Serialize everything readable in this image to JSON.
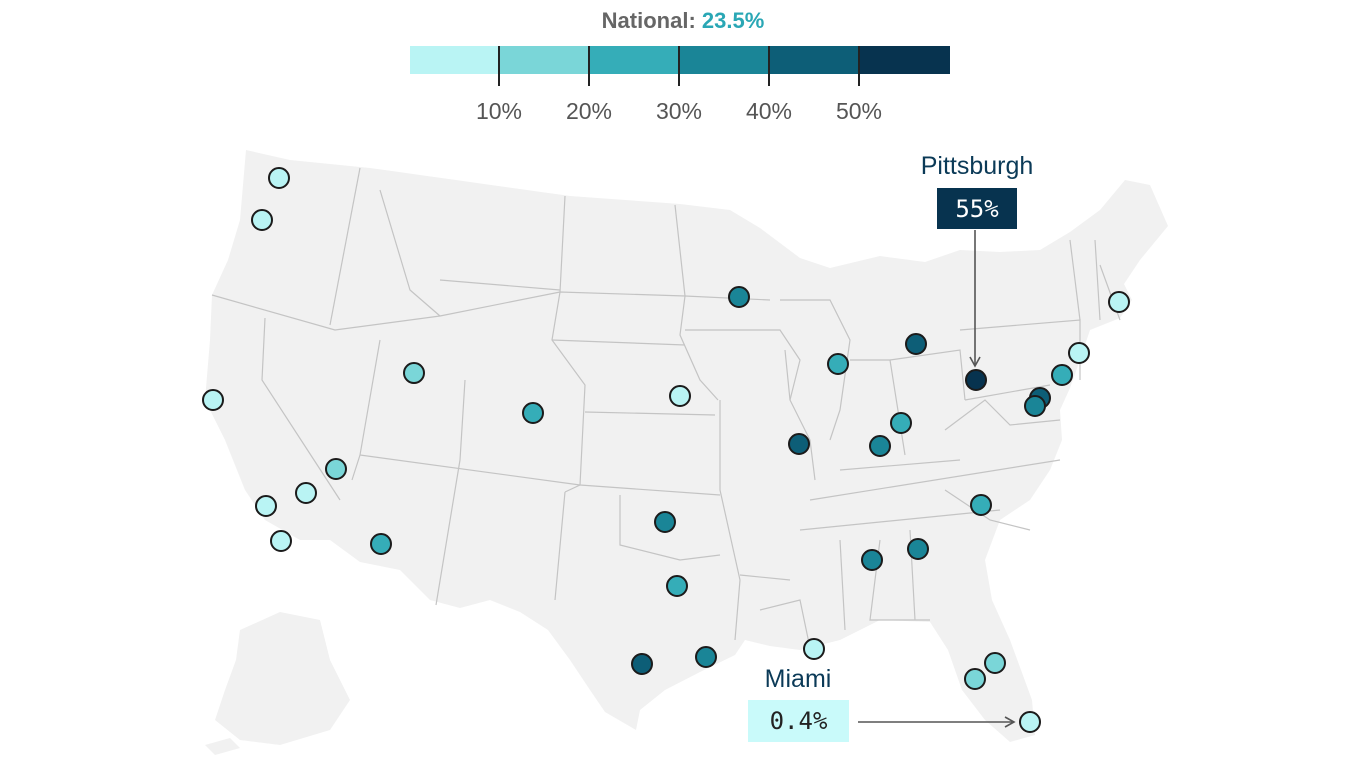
{
  "national": {
    "label": "National:",
    "value": "23.5%"
  },
  "colors": {
    "scale": [
      "#b9f4f4",
      "#7ad6d8",
      "#35adb8",
      "#1a8597",
      "#0d5e77",
      "#07334f"
    ],
    "land": "#f1f1f1",
    "border": "#c4c4c4",
    "dot_stroke": "#1b1b1b"
  },
  "legend": {
    "ticks": [
      "10%",
      "20%",
      "30%",
      "40%",
      "50%"
    ]
  },
  "callouts": {
    "pittsburgh": {
      "name": "Pittsburgh",
      "value": "55%"
    },
    "miami": {
      "name": "Miami",
      "value": "0.4%"
    }
  },
  "map_data": {
    "type": "symbol-map",
    "color_bin_values": [
      0,
      10,
      20,
      30,
      40,
      50
    ],
    "metros": [
      {
        "bin": 0
      },
      {
        "bin": 0
      },
      {
        "bin": 0
      },
      {
        "bin": 1
      },
      {
        "bin": 0
      },
      {
        "bin": 0
      },
      {
        "bin": 0
      },
      {
        "bin": 2
      },
      {
        "bin": 1
      },
      {
        "bin": 2
      },
      {
        "bin": 0
      },
      {
        "bin": 3
      },
      {
        "bin": 3
      },
      {
        "bin": 2
      },
      {
        "bin": 3
      },
      {
        "bin": 4
      },
      {
        "bin": 0
      },
      {
        "bin": 2
      },
      {
        "bin": 4
      },
      {
        "bin": 3
      },
      {
        "bin": 2
      },
      {
        "bin": 4
      },
      {
        "bin": 3
      },
      {
        "bin": 3
      },
      {
        "bin": 5
      },
      {
        "bin": 4
      },
      {
        "bin": 3
      },
      {
        "bin": 2
      },
      {
        "bin": 0
      },
      {
        "bin": 0
      },
      {
        "bin": 1
      },
      {
        "bin": 0
      }
    ]
  }
}
